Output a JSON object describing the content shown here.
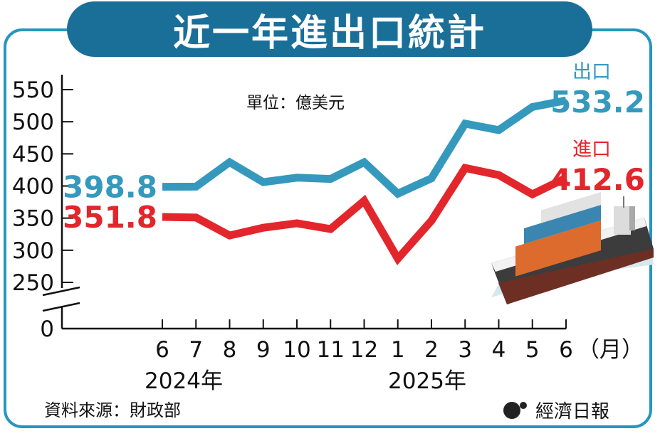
{
  "title": "近一年進出口統計",
  "unit": "單位：億美元",
  "source": "資料來源：財政部",
  "brand": "經濟日報",
  "colors": {
    "export": "#3599be",
    "import": "#e3262c",
    "frame": "#2596c2",
    "title_bg": "#1a6f99"
  },
  "chart_data": {
    "type": "line",
    "categories": [
      "6",
      "7",
      "8",
      "9",
      "10",
      "11",
      "12",
      "1",
      "2",
      "3",
      "4",
      "5",
      "6"
    ],
    "x_unit": "（月）",
    "years": [
      {
        "label": "2024年",
        "span": [
          "6",
          "12"
        ]
      },
      {
        "label": "2025年",
        "span": [
          "1",
          "6"
        ]
      }
    ],
    "y_ticks": [
      0,
      250,
      300,
      350,
      400,
      450,
      500,
      550
    ],
    "ylim": [
      0,
      560
    ],
    "y_axis_break": "between 0 and 250",
    "series": [
      {
        "name": "出口",
        "color": "#3599be",
        "values": [
          398.8,
          399,
          437,
          406,
          413,
          411,
          437,
          388,
          412,
          497,
          487,
          523,
          533.2
        ],
        "start_label": "398.8",
        "end_label": "533.2"
      },
      {
        "name": "進口",
        "color": "#e3262c",
        "values": [
          351.8,
          351,
          323,
          335,
          342,
          333,
          377,
          287,
          346,
          428,
          417,
          387,
          412.6
        ],
        "start_label": "351.8",
        "end_label": "412.6"
      }
    ],
    "grid": false,
    "legend": "inline-right"
  }
}
